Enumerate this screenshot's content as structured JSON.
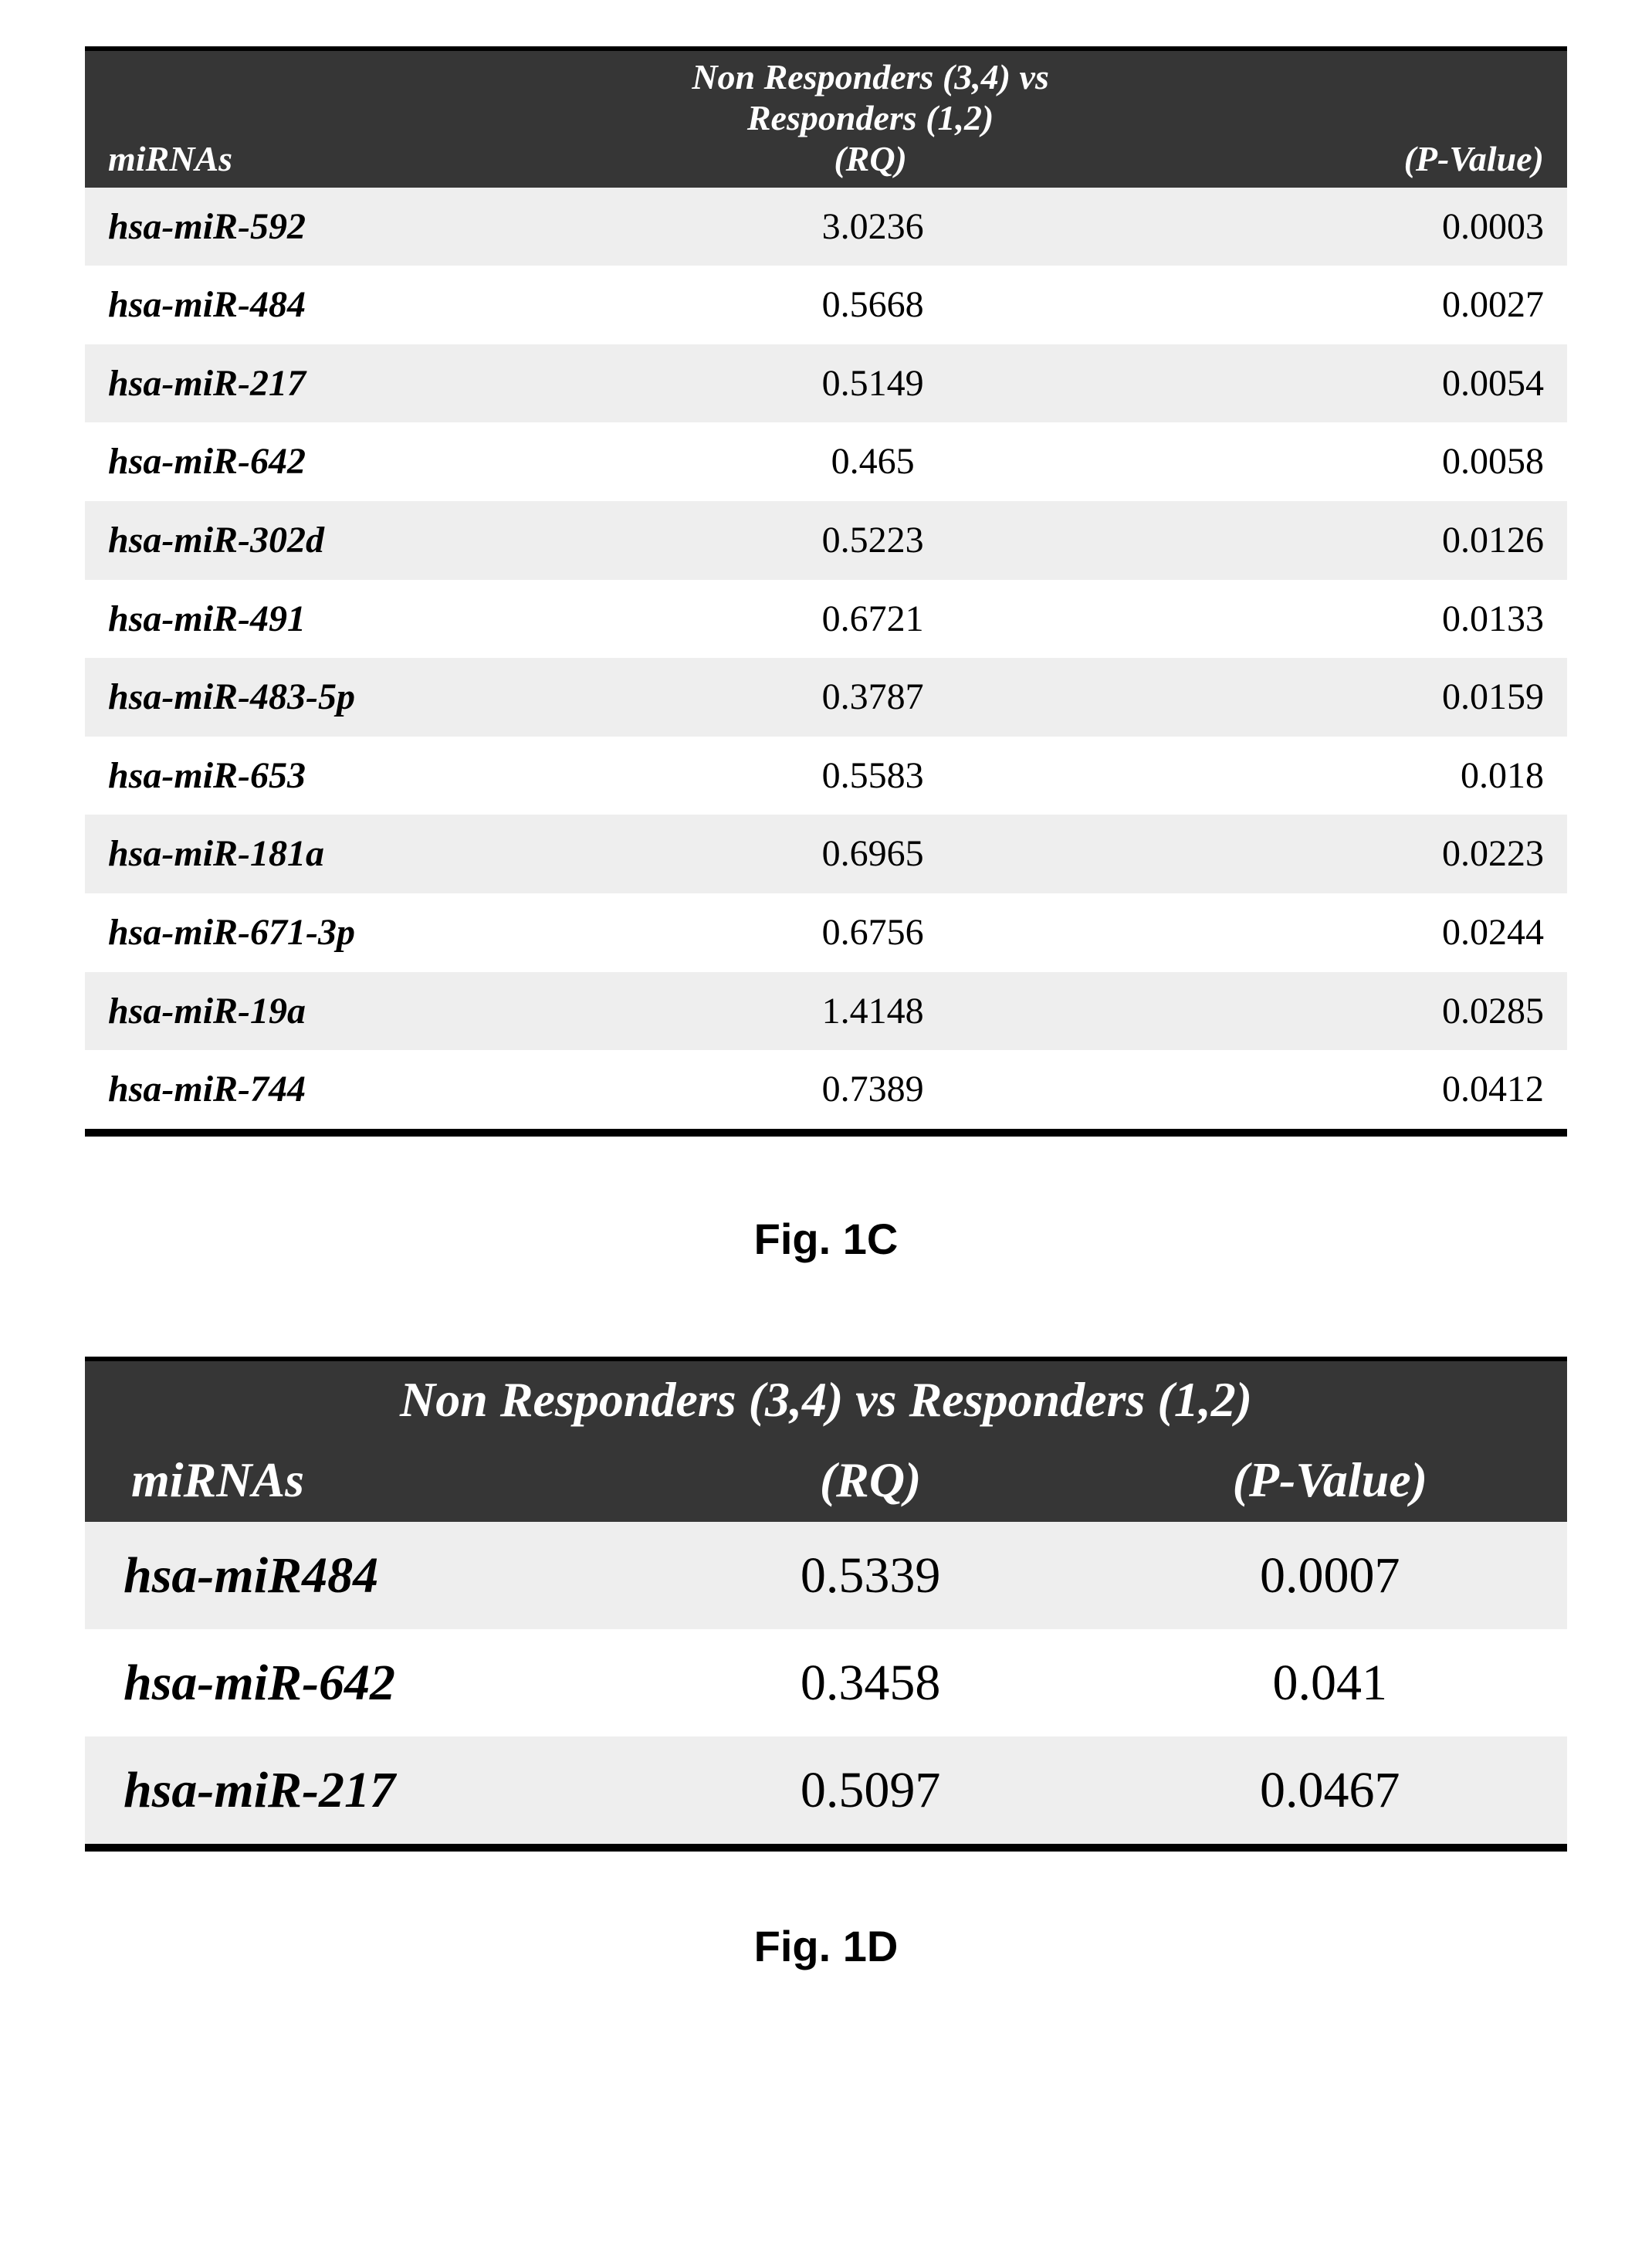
{
  "colors": {
    "page_bg": "#ffffff",
    "header_bg": "#363636",
    "header_fg": "#ffffff",
    "row_alt_bg": "#eeeeee",
    "row_norm_bg": "#ffffff",
    "text": "#000000",
    "rule": "#000000"
  },
  "typography": {
    "caption_family": "Arial, Helvetica, sans-serif",
    "body_family": "\"Times New Roman\", Times, serif",
    "table1_header_fontsize": 46,
    "table1_body_fontsize": 48,
    "table2_header_fontsize": 64,
    "table2_body_fontsize": 66,
    "caption_fontsize": 56,
    "italic_headers": true,
    "bold_headers": true
  },
  "fig1c": {
    "type": "table",
    "caption": "Fig. 1C",
    "header_title": "Non Responders (3,4) vs Responders (1,2)",
    "columns": {
      "mirna": "miRNAs",
      "rq": "(RQ)",
      "pval": "(P-Value)"
    },
    "column_align": {
      "mirna": "left",
      "rq": "center",
      "pval": "right"
    },
    "rows": [
      {
        "mirna": "hsa-miR-592",
        "rq": "3.0236",
        "pval": "0.0003"
      },
      {
        "mirna": "hsa-miR-484",
        "rq": "0.5668",
        "pval": "0.0027"
      },
      {
        "mirna": "hsa-miR-217",
        "rq": "0.5149",
        "pval": "0.0054"
      },
      {
        "mirna": "hsa-miR-642",
        "rq": "0.465",
        "pval": "0.0058"
      },
      {
        "mirna": "hsa-miR-302d",
        "rq": "0.5223",
        "pval": "0.0126"
      },
      {
        "mirna": "hsa-miR-491",
        "rq": "0.6721",
        "pval": "0.0133"
      },
      {
        "mirna": "hsa-miR-483-5p",
        "rq": "0.3787",
        "pval": "0.0159"
      },
      {
        "mirna": "hsa-miR-653",
        "rq": "0.5583",
        "pval": "0.018"
      },
      {
        "mirna": "hsa-miR-181a",
        "rq": "0.6965",
        "pval": "0.0223"
      },
      {
        "mirna": "hsa-miR-671-3p",
        "rq": "0.6756",
        "pval": "0.0244"
      },
      {
        "mirna": "hsa-miR-19a",
        "rq": "1.4148",
        "pval": "0.0285"
      },
      {
        "mirna": "hsa-miR-744",
        "rq": "0.7389",
        "pval": "0.0412"
      }
    ]
  },
  "fig1d": {
    "type": "table",
    "caption": "Fig. 1D",
    "header_title": "Non Responders (3,4) vs Responders (1,2)",
    "columns": {
      "mirna": "miRNAs",
      "rq": "(RQ)",
      "pval": "(P-Value)"
    },
    "column_align": {
      "mirna": "left",
      "rq": "center",
      "pval": "center"
    },
    "rows": [
      {
        "mirna": "hsa-miR484",
        "rq": "0.5339",
        "pval": "0.0007"
      },
      {
        "mirna": "hsa-miR-642",
        "rq": "0.3458",
        "pval": "0.041"
      },
      {
        "mirna": "hsa-miR-217",
        "rq": "0.5097",
        "pval": "0.0467"
      }
    ]
  }
}
